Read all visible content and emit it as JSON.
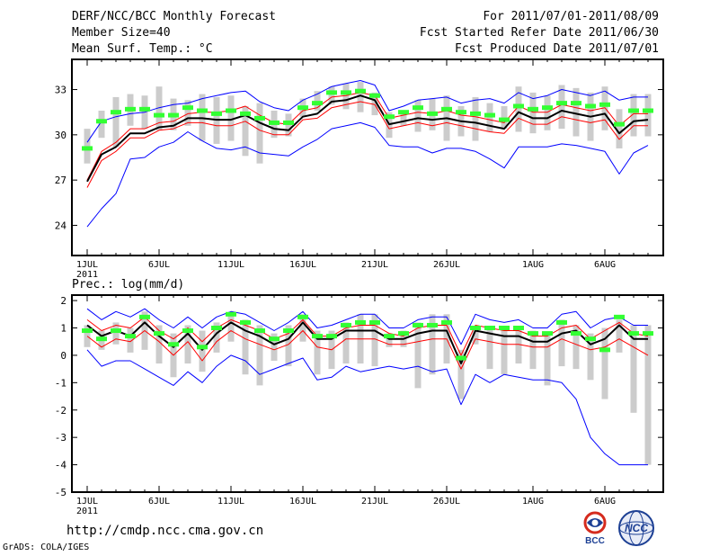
{
  "header": {
    "title": "DERF/NCC/BCC Monthly Forecast",
    "member_size": "Member Size=40",
    "variable": "Mean Surf. Temp.: °C",
    "period": "For 2011/07/01-2011/08/09",
    "start_date": "Fcst Started Refer Date 2011/06/30",
    "produced_date": "Fcst Produced Date 2011/07/01"
  },
  "footer": {
    "url": "http://cmdp.ncc.cma.gov.cn",
    "credit": "GrADS: COLA/IGES",
    "logo_bcc": "BCC",
    "logo_ncc": "NCC"
  },
  "colors": {
    "envelope": "#0000ff",
    "mean": "#000000",
    "median": "#ff0000",
    "bar": "#cccccc",
    "marker": "#33ff33"
  },
  "chart_data": [
    {
      "type": "line",
      "name": "temperature",
      "ylabel": "Mean Surf. Temp.: °C",
      "ylim": [
        22,
        35
      ],
      "yticks": [
        "24",
        "27",
        "30",
        "33"
      ],
      "ytick_values": [
        24,
        27,
        30,
        33
      ],
      "x": [
        1,
        2,
        3,
        4,
        5,
        6,
        7,
        8,
        9,
        10,
        11,
        12,
        13,
        14,
        15,
        16,
        17,
        18,
        19,
        20,
        21,
        22,
        23,
        24,
        25,
        26,
        27,
        28,
        29,
        30,
        31,
        32,
        33,
        34,
        35,
        36,
        37,
        38,
        39,
        40
      ],
      "xticks": [
        "1JUL",
        "6JUL",
        "11JUL",
        "16JUL",
        "21JUL",
        "26JUL",
        "1AUG",
        "6AUG"
      ],
      "xtick_days": [
        1,
        6,
        11,
        16,
        21,
        26,
        32,
        37
      ],
      "year_label": "2011",
      "series": [
        {
          "name": "max",
          "values": [
            29.5,
            30.9,
            31.2,
            31.4,
            31.5,
            31.8,
            32.0,
            32.1,
            32.4,
            32.6,
            32.8,
            32.9,
            32.2,
            31.8,
            31.6,
            32.3,
            32.7,
            33.2,
            33.4,
            33.6,
            33.3,
            31.6,
            31.9,
            32.3,
            32.4,
            32.5,
            32.1,
            32.3,
            32.4,
            32.1,
            32.8,
            32.4,
            32.6,
            33.0,
            32.8,
            32.6,
            32.9,
            32.3,
            32.5,
            32.5
          ]
        },
        {
          "name": "upper",
          "values": [
            27.0,
            28.9,
            29.5,
            30.4,
            30.4,
            30.8,
            30.9,
            31.4,
            31.5,
            31.5,
            31.6,
            31.9,
            31.3,
            30.8,
            30.7,
            31.6,
            31.8,
            32.5,
            32.6,
            32.8,
            32.6,
            31.1,
            31.3,
            31.5,
            31.4,
            31.6,
            31.3,
            31.2,
            31.0,
            30.8,
            31.9,
            31.5,
            31.5,
            32.0,
            31.8,
            31.6,
            31.8,
            30.6,
            31.4,
            31.4
          ]
        },
        {
          "name": "mean",
          "values": [
            26.9,
            28.7,
            29.2,
            30.1,
            30.1,
            30.5,
            30.6,
            31.1,
            31.1,
            31.0,
            31.0,
            31.3,
            30.8,
            30.4,
            30.3,
            31.2,
            31.4,
            32.2,
            32.3,
            32.6,
            32.3,
            30.7,
            30.9,
            31.1,
            31.0,
            31.1,
            30.9,
            30.8,
            30.6,
            30.4,
            31.5,
            31.1,
            31.1,
            31.6,
            31.4,
            31.2,
            31.4,
            30.1,
            30.9,
            31.0
          ]
        },
        {
          "name": "lower",
          "values": [
            26.5,
            28.3,
            28.9,
            29.8,
            29.8,
            30.3,
            30.4,
            30.8,
            30.8,
            30.6,
            30.6,
            30.9,
            30.3,
            30.0,
            30.0,
            31.0,
            31.1,
            31.8,
            32.0,
            32.2,
            32.0,
            30.4,
            30.6,
            30.8,
            30.6,
            30.8,
            30.6,
            30.4,
            30.2,
            30.1,
            31.1,
            30.7,
            30.7,
            31.2,
            31.0,
            30.8,
            31.0,
            29.7,
            30.6,
            30.6
          ]
        },
        {
          "name": "min",
          "values": [
            23.9,
            25.1,
            26.1,
            28.4,
            28.5,
            29.2,
            29.5,
            30.2,
            29.6,
            29.1,
            29.0,
            29.2,
            28.8,
            28.7,
            28.6,
            29.2,
            29.7,
            30.4,
            30.6,
            30.8,
            30.5,
            29.3,
            29.2,
            29.2,
            28.8,
            29.1,
            29.1,
            28.9,
            28.4,
            27.8,
            29.2,
            29.2,
            29.2,
            29.4,
            29.3,
            29.1,
            28.9,
            27.4,
            28.8,
            29.3
          ]
        }
      ],
      "bars": {
        "low": [
          28.1,
          29.8,
          29.2,
          30.6,
          30.4,
          30.3,
          30.3,
          30.6,
          29.6,
          29.4,
          29.6,
          28.6,
          28.1,
          29.8,
          29.9,
          31.2,
          31.6,
          32.0,
          31.7,
          31.5,
          31.3,
          29.8,
          30.6,
          30.2,
          30.3,
          29.6,
          29.9,
          29.6,
          30.2,
          30.4,
          30.2,
          30.1,
          30.3,
          30.4,
          29.9,
          29.6,
          30.3,
          29.1,
          29.9,
          29.9
        ],
        "high": [
          30.4,
          31.6,
          32.5,
          32.7,
          32.6,
          33.2,
          32.4,
          32.3,
          32.7,
          32.5,
          32.6,
          31.9,
          32.1,
          31.6,
          31.4,
          32.4,
          32.9,
          33.2,
          33.4,
          33.5,
          32.8,
          31.5,
          31.6,
          32.3,
          32.4,
          32.6,
          31.9,
          32.5,
          32.1,
          31.9,
          33.2,
          32.8,
          32.6,
          33.3,
          33.1,
          32.8,
          33.2,
          31.7,
          32.7,
          32.7
        ]
      },
      "markers": [
        29.1,
        30.9,
        31.5,
        31.7,
        31.7,
        31.3,
        31.3,
        31.8,
        31.6,
        31.4,
        31.6,
        31.4,
        31.1,
        30.8,
        30.8,
        31.8,
        32.1,
        32.8,
        32.8,
        32.9,
        32.6,
        31.2,
        31.5,
        31.8,
        31.4,
        31.7,
        31.5,
        31.4,
        31.3,
        31.0,
        31.9,
        31.7,
        31.8,
        32.1,
        32.1,
        31.9,
        32.0,
        30.7,
        31.6,
        31.6
      ]
    },
    {
      "type": "line",
      "name": "precipitation",
      "ylabel": "Prec.: log(mm/d)",
      "ylim": [
        -5,
        2.2
      ],
      "yticks": [
        "-5",
        "-4",
        "-3",
        "-2",
        "-1",
        "0",
        "1",
        "2"
      ],
      "ytick_values": [
        -5,
        -4,
        -3,
        -2,
        -1,
        0,
        1,
        2
      ],
      "x": [
        1,
        2,
        3,
        4,
        5,
        6,
        7,
        8,
        9,
        10,
        11,
        12,
        13,
        14,
        15,
        16,
        17,
        18,
        19,
        20,
        21,
        22,
        23,
        24,
        25,
        26,
        27,
        28,
        29,
        30,
        31,
        32,
        33,
        34,
        35,
        36,
        37,
        38,
        39,
        40
      ],
      "xticks": [
        "1JUL",
        "6JUL",
        "11JUL",
        "16JUL",
        "21JUL",
        "26JUL",
        "1AUG",
        "6AUG"
      ],
      "xtick_days": [
        1,
        6,
        11,
        16,
        21,
        26,
        32,
        37
      ],
      "year_label": "2011",
      "series": [
        {
          "name": "max",
          "values": [
            1.7,
            1.3,
            1.6,
            1.4,
            1.7,
            1.3,
            1.0,
            1.4,
            1.0,
            1.4,
            1.6,
            1.5,
            1.2,
            0.9,
            1.2,
            1.6,
            1.0,
            1.1,
            1.3,
            1.5,
            1.5,
            1.0,
            1.0,
            1.3,
            1.4,
            1.4,
            0.4,
            1.5,
            1.3,
            1.2,
            1.3,
            1.0,
            1.0,
            1.5,
            1.6,
            1.0,
            1.3,
            1.4,
            1.1,
            1.1
          ]
        },
        {
          "name": "upper",
          "values": [
            1.3,
            0.9,
            1.1,
            1.0,
            1.4,
            0.9,
            0.6,
            1.0,
            0.5,
            1.0,
            1.3,
            1.1,
            0.9,
            0.6,
            0.8,
            1.3,
            0.7,
            0.7,
            1.0,
            1.1,
            1.1,
            0.8,
            0.7,
            1.0,
            1.1,
            1.1,
            0.0,
            1.1,
            1.0,
            0.9,
            0.9,
            0.7,
            0.7,
            1.0,
            1.1,
            0.6,
            0.9,
            1.2,
            0.8,
            0.7
          ]
        },
        {
          "name": "mean",
          "values": [
            1.1,
            0.7,
            0.9,
            0.7,
            1.2,
            0.7,
            0.3,
            0.8,
            0.2,
            0.8,
            1.2,
            0.9,
            0.7,
            0.4,
            0.6,
            1.2,
            0.6,
            0.6,
            0.9,
            0.9,
            0.9,
            0.6,
            0.6,
            0.8,
            0.9,
            0.9,
            -0.3,
            0.9,
            0.8,
            0.7,
            0.7,
            0.5,
            0.5,
            0.8,
            0.9,
            0.4,
            0.6,
            1.1,
            0.6,
            0.6
          ]
        },
        {
          "name": "lower",
          "values": [
            0.7,
            0.3,
            0.6,
            0.5,
            0.9,
            0.5,
            0.0,
            0.5,
            -0.2,
            0.5,
            0.9,
            0.6,
            0.4,
            0.2,
            0.4,
            0.9,
            0.3,
            0.2,
            0.6,
            0.6,
            0.6,
            0.4,
            0.4,
            0.5,
            0.6,
            0.6,
            -0.5,
            0.6,
            0.5,
            0.4,
            0.4,
            0.3,
            0.3,
            0.6,
            0.4,
            0.2,
            0.3,
            0.6,
            0.3,
            0.0
          ]
        },
        {
          "name": "min",
          "values": [
            0.2,
            -0.4,
            -0.2,
            -0.2,
            -0.5,
            -0.8,
            -1.1,
            -0.6,
            -1.0,
            -0.4,
            0.0,
            -0.2,
            -0.7,
            -0.5,
            -0.3,
            -0.1,
            -0.9,
            -0.8,
            -0.4,
            -0.6,
            -0.5,
            -0.4,
            -0.5,
            -0.4,
            -0.6,
            -0.5,
            -1.8,
            -0.7,
            -1.0,
            -0.7,
            -0.8,
            -0.9,
            -0.9,
            -1.0,
            -1.6,
            -3.0,
            -3.6,
            -4.0,
            -4.0,
            -4.0
          ]
        }
      ],
      "bars": {
        "low": [
          0.3,
          0.2,
          0.4,
          0.1,
          0.2,
          -0.3,
          -0.8,
          -0.3,
          -0.6,
          0.1,
          0.5,
          -0.7,
          -1.1,
          -0.2,
          -0.4,
          0.5,
          -0.7,
          -0.5,
          -0.3,
          -0.3,
          -0.4,
          0.3,
          0.3,
          -1.2,
          -0.7,
          -0.3,
          -1.6,
          0.4,
          -0.5,
          -0.7,
          -0.3,
          -0.5,
          -1.1,
          -0.4,
          -0.5,
          -0.9,
          -1.6,
          0.1,
          -2.1,
          -4.0
        ],
        "high": [
          1.1,
          0.9,
          1.2,
          1.0,
          1.6,
          1.1,
          0.8,
          1.1,
          0.9,
          1.2,
          1.5,
          1.3,
          1.1,
          0.8,
          1.1,
          1.5,
          0.9,
          0.9,
          1.2,
          1.5,
          1.5,
          0.8,
          0.9,
          1.2,
          1.5,
          1.5,
          0.2,
          1.0,
          1.0,
          1.0,
          1.0,
          0.9,
          0.8,
          1.3,
          1.1,
          0.8,
          1.0,
          1.3,
          1.1,
          1.1
        ]
      },
      "markers": [
        0.9,
        0.6,
        0.9,
        0.7,
        1.4,
        0.8,
        0.4,
        0.9,
        0.3,
        1.0,
        1.5,
        1.2,
        0.9,
        0.6,
        0.9,
        1.4,
        0.7,
        0.7,
        1.1,
        1.2,
        1.2,
        0.7,
        0.8,
        1.1,
        1.1,
        1.2,
        -0.1,
        1.0,
        1.0,
        1.0,
        1.0,
        0.8,
        0.8,
        1.2,
        0.8,
        0.6,
        0.2,
        1.4,
        0.8,
        0.8
      ]
    }
  ]
}
